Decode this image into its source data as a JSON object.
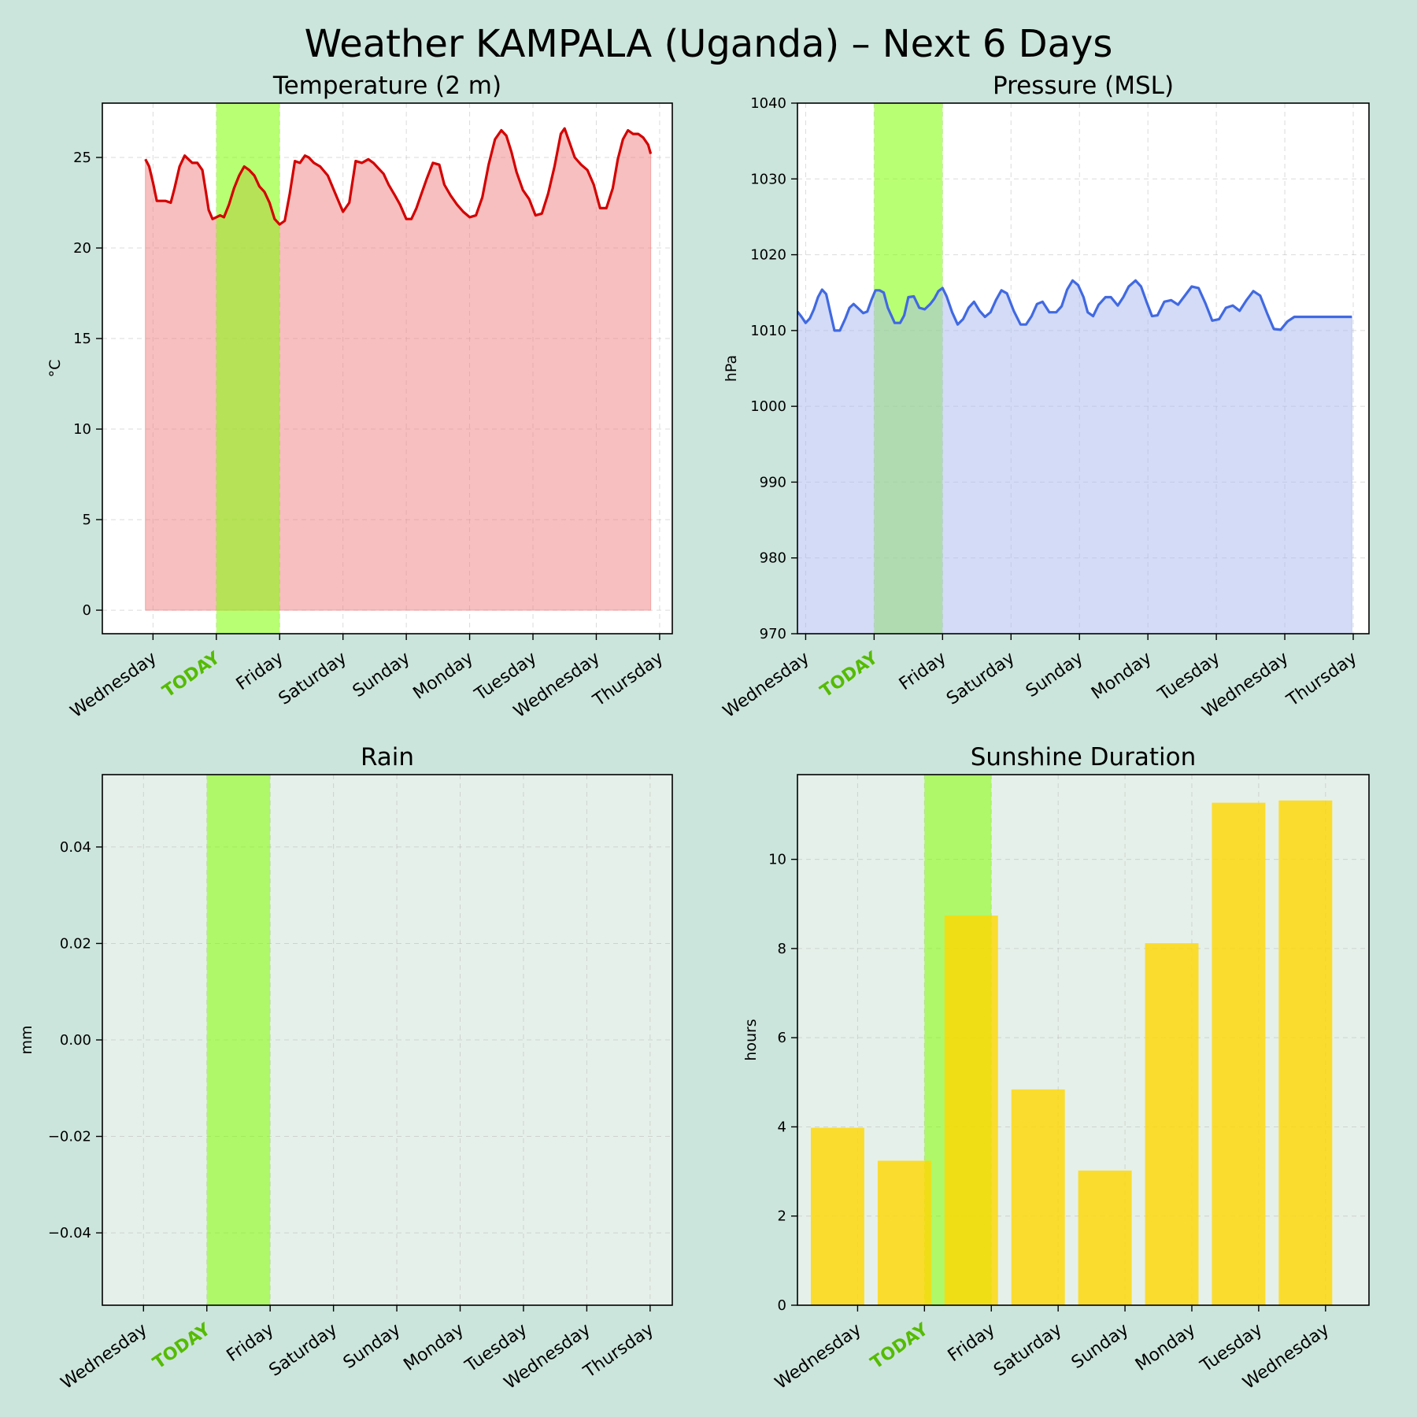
{
  "figure": {
    "title": "Weather KAMPALA (Uganda) – Next 6 Days"
  },
  "colors": {
    "figure_bg": "#cce5dc",
    "today_band": "#7fff00",
    "today_label": "#55bb00",
    "temp_line": "#d40000",
    "temp_fill": "#f08080",
    "pressure_line": "#4169e1",
    "pressure_fill": "#a8b8f0",
    "sunshine_bar": "#ffd700",
    "light_axes_bg": "#e6f0ea"
  },
  "chart_data": [
    {
      "id": "temperature",
      "type": "area",
      "title": "Temperature (2 m)",
      "xlabel": "",
      "ylabel": "°C",
      "ylim": [
        -1.3,
        28
      ],
      "yticks": [
        0,
        5,
        10,
        15,
        20,
        25
      ],
      "grid": true,
      "xlim": [
        -1.8,
        7.2
      ],
      "xticks": [
        {
          "pos": -1,
          "label": "Wednesday"
        },
        {
          "pos": 0,
          "label": "TODAY",
          "today": true
        },
        {
          "pos": 1,
          "label": "Friday"
        },
        {
          "pos": 2,
          "label": "Saturday"
        },
        {
          "pos": 3,
          "label": "Sunday"
        },
        {
          "pos": 4,
          "label": "Monday"
        },
        {
          "pos": 5,
          "label": "Tuesday"
        },
        {
          "pos": 6,
          "label": "Wednesday"
        },
        {
          "pos": 7,
          "label": "Thursday"
        }
      ],
      "today_span": [
        0,
        1
      ],
      "x": [
        -1.12,
        -1.06,
        -1.0,
        -0.94,
        -0.88,
        -0.8,
        -0.72,
        -0.66,
        -0.58,
        -0.5,
        -0.44,
        -0.38,
        -0.3,
        -0.22,
        -0.16,
        -0.12,
        -0.06,
        0.0,
        0.06,
        0.12,
        0.2,
        0.28,
        0.36,
        0.44,
        0.52,
        0.6,
        0.68,
        0.76,
        0.84,
        0.92,
        1.0,
        1.08,
        1.16,
        1.24,
        1.32,
        1.4,
        1.46,
        1.54,
        1.64,
        1.76,
        1.88,
        2.0,
        2.1,
        2.2,
        2.3,
        2.4,
        2.48,
        2.56,
        2.64,
        2.72,
        2.82,
        2.9,
        3.0,
        3.08,
        3.16,
        3.24,
        3.32,
        3.42,
        3.52,
        3.6,
        3.7,
        3.8,
        3.9,
        4.0,
        4.1,
        4.2,
        4.3,
        4.4,
        4.5,
        4.58,
        4.66,
        4.74,
        4.84,
        4.94,
        5.04,
        5.14,
        5.24,
        5.34,
        5.44,
        5.5,
        5.58,
        5.66,
        5.76,
        5.86,
        5.96,
        6.06,
        6.16,
        6.26,
        6.34,
        6.42,
        6.5,
        6.58,
        6.66,
        6.74,
        6.82,
        6.86
      ],
      "y": [
        24.9,
        24.5,
        23.6,
        22.6,
        22.6,
        22.6,
        22.5,
        23.3,
        24.5,
        25.1,
        24.9,
        24.7,
        24.7,
        24.3,
        23.0,
        22.1,
        21.6,
        21.7,
        21.8,
        21.7,
        22.4,
        23.3,
        24.0,
        24.5,
        24.3,
        24.0,
        23.4,
        23.1,
        22.5,
        21.6,
        21.3,
        21.5,
        23.0,
        24.8,
        24.7,
        25.1,
        25.0,
        24.7,
        24.5,
        24.0,
        23.0,
        22.0,
        22.5,
        24.8,
        24.7,
        24.9,
        24.7,
        24.4,
        24.1,
        23.5,
        22.9,
        22.4,
        21.6,
        21.6,
        22.2,
        23.0,
        23.8,
        24.7,
        24.6,
        23.5,
        22.9,
        22.4,
        22.0,
        21.7,
        21.8,
        22.8,
        24.6,
        26.0,
        26.5,
        26.2,
        25.3,
        24.2,
        23.2,
        22.7,
        21.8,
        21.9,
        23.0,
        24.5,
        26.3,
        26.6,
        25.8,
        25.0,
        24.6,
        24.3,
        23.5,
        22.2,
        22.2,
        23.3,
        24.9,
        26.0,
        26.5,
        26.3,
        26.3,
        26.1,
        25.7,
        25.2
      ]
    },
    {
      "id": "pressure",
      "type": "area",
      "title": "Pressure (MSL)",
      "xlabel": "",
      "ylabel": "hPa",
      "ylim": [
        970,
        1040
      ],
      "yticks": [
        970,
        980,
        990,
        1000,
        1010,
        1020,
        1030,
        1040
      ],
      "grid": true,
      "xlim": [
        -1.12,
        7.23
      ],
      "xticks": [
        {
          "pos": -1,
          "label": "Wednesday"
        },
        {
          "pos": 0,
          "label": "TODAY",
          "today": true
        },
        {
          "pos": 1,
          "label": "Friday"
        },
        {
          "pos": 2,
          "label": "Saturday"
        },
        {
          "pos": 3,
          "label": "Sunday"
        },
        {
          "pos": 4,
          "label": "Monday"
        },
        {
          "pos": 5,
          "label": "Tuesday"
        },
        {
          "pos": 6,
          "label": "Wednesday"
        },
        {
          "pos": 7,
          "label": "Thursday"
        }
      ],
      "today_span": [
        0,
        1
      ],
      "x": [
        -1.12,
        -1.06,
        -1.0,
        -0.94,
        -0.88,
        -0.82,
        -0.76,
        -0.7,
        -0.64,
        -0.58,
        -0.5,
        -0.42,
        -0.36,
        -0.3,
        -0.24,
        -0.16,
        -0.1,
        -0.04,
        0.02,
        0.08,
        0.14,
        0.2,
        0.3,
        0.38,
        0.44,
        0.5,
        0.58,
        0.66,
        0.74,
        0.82,
        0.88,
        0.94,
        1.0,
        1.06,
        1.14,
        1.22,
        1.3,
        1.38,
        1.46,
        1.54,
        1.62,
        1.7,
        1.78,
        1.86,
        1.94,
        2.04,
        2.14,
        2.22,
        2.3,
        2.38,
        2.46,
        2.56,
        2.66,
        2.74,
        2.82,
        2.9,
        2.98,
        3.06,
        3.12,
        3.2,
        3.28,
        3.38,
        3.46,
        3.56,
        3.64,
        3.72,
        3.82,
        3.9,
        3.98,
        4.06,
        4.14,
        4.24,
        4.34,
        4.44,
        4.54,
        4.64,
        4.74,
        4.84,
        4.94,
        5.04,
        5.14,
        5.24,
        5.34,
        5.44,
        5.54,
        5.64,
        5.74,
        5.84,
        5.94,
        6.04,
        6.14,
        6.24,
        6.34,
        6.44,
        6.54,
        6.64,
        6.74,
        6.86,
        6.98
      ],
      "y": [
        1012.5,
        1011.8,
        1011.0,
        1011.6,
        1012.8,
        1014.4,
        1015.4,
        1014.8,
        1012.4,
        1010.0,
        1010.0,
        1011.6,
        1013.0,
        1013.5,
        1013.0,
        1012.3,
        1012.5,
        1014.0,
        1015.3,
        1015.3,
        1015.0,
        1013.0,
        1011.0,
        1011.0,
        1012.0,
        1014.4,
        1014.5,
        1013.0,
        1012.8,
        1013.5,
        1014.2,
        1015.2,
        1015.6,
        1014.5,
        1012.4,
        1010.8,
        1011.5,
        1013.0,
        1013.8,
        1012.6,
        1011.8,
        1012.4,
        1014.0,
        1015.3,
        1014.9,
        1012.6,
        1010.8,
        1010.8,
        1011.9,
        1013.5,
        1013.8,
        1012.4,
        1012.4,
        1013.2,
        1015.4,
        1016.6,
        1016.0,
        1014.4,
        1012.4,
        1011.9,
        1013.4,
        1014.4,
        1014.4,
        1013.3,
        1014.4,
        1015.8,
        1016.6,
        1015.8,
        1013.8,
        1011.9,
        1012.0,
        1013.8,
        1014.0,
        1013.4,
        1014.6,
        1015.8,
        1015.6,
        1013.6,
        1011.3,
        1011.5,
        1013.0,
        1013.3,
        1012.6,
        1014.0,
        1015.2,
        1014.6,
        1012.3,
        1010.2,
        1010.1,
        1011.2,
        1011.8,
        1011.8,
        1011.8,
        1011.8,
        1011.8,
        1011.8,
        1011.8,
        1011.8,
        1011.8
      ]
    },
    {
      "id": "rain",
      "type": "bar",
      "title": "Rain",
      "xlabel": "",
      "ylabel": "mm",
      "ylim": [
        -0.055,
        0.055
      ],
      "yticks": [
        -0.04,
        -0.02,
        0.0,
        0.02,
        0.04
      ],
      "ytick_labels": [
        "−0.04",
        "−0.02",
        "0.00",
        "0.02",
        "0.04"
      ],
      "grid": true,
      "xlim": [
        -1.65,
        7.35
      ],
      "xticks": [
        {
          "pos": -1,
          "label": "Wednesday"
        },
        {
          "pos": 0,
          "label": "TODAY",
          "today": true
        },
        {
          "pos": 1,
          "label": "Friday"
        },
        {
          "pos": 2,
          "label": "Saturday"
        },
        {
          "pos": 3,
          "label": "Sunday"
        },
        {
          "pos": 4,
          "label": "Monday"
        },
        {
          "pos": 5,
          "label": "Tuesday"
        },
        {
          "pos": 6,
          "label": "Wednesday"
        },
        {
          "pos": 7,
          "label": "Thursday"
        }
      ],
      "today_span": [
        0,
        1
      ],
      "categories": [
        "Wednesday",
        "TODAY",
        "Friday",
        "Saturday",
        "Sunday",
        "Monday",
        "Tuesday",
        "Wednesday"
      ],
      "values": [
        0,
        0,
        0,
        0,
        0,
        0,
        0,
        0
      ]
    },
    {
      "id": "sunshine",
      "type": "bar",
      "title": "Sunshine Duration",
      "xlabel": "",
      "ylabel": "hours",
      "ylim": [
        0,
        11.9
      ],
      "yticks": [
        0,
        2,
        4,
        6,
        8,
        10
      ],
      "grid": true,
      "xlim": [
        -1.9,
        6.65
      ],
      "xticks": [
        {
          "pos": -1,
          "label": "Wednesday"
        },
        {
          "pos": 0,
          "label": "TODAY",
          "today": true
        },
        {
          "pos": 1,
          "label": "Friday"
        },
        {
          "pos": 2,
          "label": "Saturday"
        },
        {
          "pos": 3,
          "label": "Sunday"
        },
        {
          "pos": 4,
          "label": "Monday"
        },
        {
          "pos": 5,
          "label": "Tuesday"
        },
        {
          "pos": 6,
          "label": "Wednesday"
        }
      ],
      "today_span": [
        0,
        1
      ],
      "categories": [
        "Wednesday",
        "TODAY",
        "Friday",
        "Saturday",
        "Sunday",
        "Monday",
        "Tuesday",
        "Wednesday"
      ],
      "x": [
        -1,
        0,
        1,
        2,
        3,
        4,
        5,
        6
      ],
      "bar_offset": -0.3,
      "bar_width": 0.8,
      "values": [
        3.98,
        3.24,
        8.74,
        4.84,
        3.02,
        8.12,
        11.27,
        11.32
      ]
    }
  ]
}
